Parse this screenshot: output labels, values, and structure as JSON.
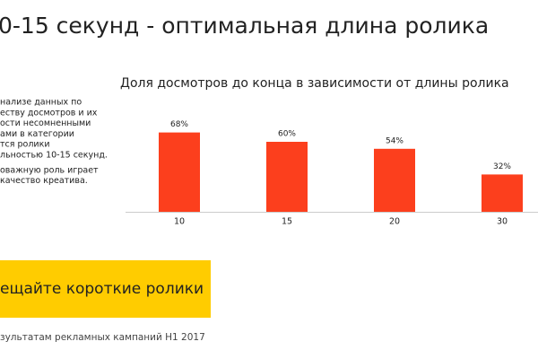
{
  "slide": {
    "heading": "0-15 секунд - оптимальная длина ролика",
    "paragraph": [
      "нализе данных по",
      "еству досмотров и их",
      "ости несомненными",
      "ами в категории",
      "тся ролики",
      "льностью 10-15 секунд."
    ],
    "paragraph2": [
      "оважную роль играет",
      "качество креатива."
    ],
    "button": "ещайте короткие ролики",
    "footnote": "зультатам рекламных кампаний H1 2017"
  },
  "chart_data": {
    "type": "bar",
    "title": "Доля досмотров до конца в зависимости от длины ролика",
    "categories": [
      "10",
      "15",
      "20",
      "30"
    ],
    "values": [
      68,
      60,
      54,
      32
    ],
    "value_labels": [
      "68%",
      "60%",
      "54%",
      "32%"
    ],
    "color": "#fc3f1d"
  }
}
